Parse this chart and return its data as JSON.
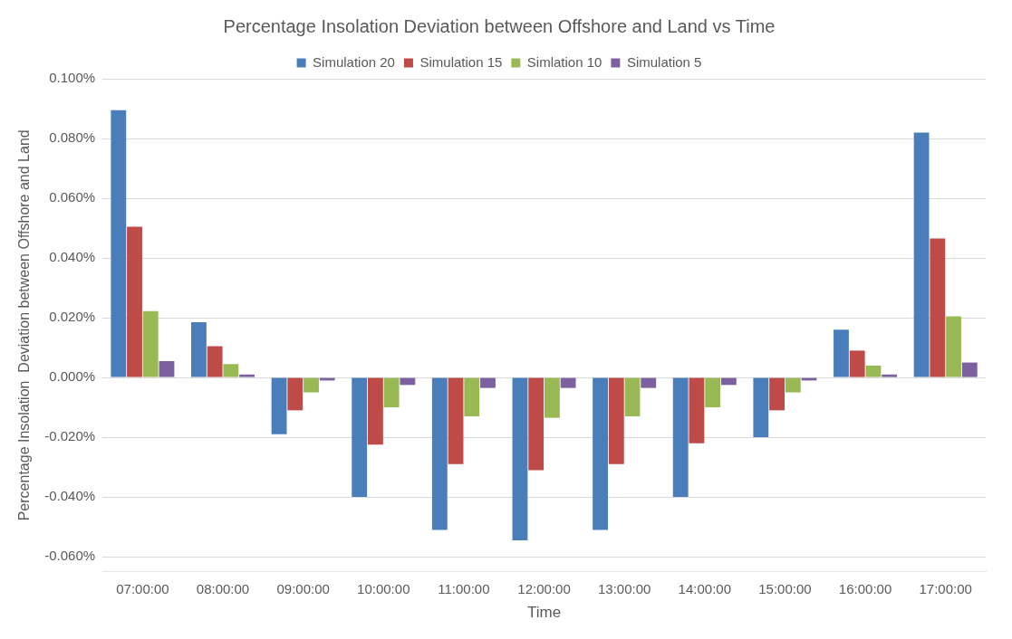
{
  "chart_data": {
    "type": "bar",
    "title": "Percentage Insolation Deviation between Offshore and Land vs Time",
    "xlabel": "Time",
    "ylabel": "Percentage Insolation  Deviation between Offshore and Land",
    "categories": [
      "07:00:00",
      "08:00:00",
      "09:00:00",
      "10:00:00",
      "11:00:00",
      "12:00:00",
      "13:00:00",
      "14:00:00",
      "15:00:00",
      "16:00:00",
      "17:00:00"
    ],
    "series": [
      {
        "name": "Simulation 20",
        "color": "#4a7ebb",
        "values": [
          0.0895,
          0.0185,
          -0.019,
          -0.04,
          -0.051,
          -0.0545,
          -0.051,
          -0.04,
          -0.02,
          0.016,
          0.082
        ]
      },
      {
        "name": "Simulation 15",
        "color": "#be4b48",
        "values": [
          0.0505,
          0.0105,
          -0.011,
          -0.0225,
          -0.029,
          -0.031,
          -0.029,
          -0.022,
          -0.011,
          0.009,
          0.0465
        ]
      },
      {
        "name": "Simlation 10",
        "color": "#98b954",
        "values": [
          0.0222,
          0.0045,
          -0.005,
          -0.01,
          -0.013,
          -0.0135,
          -0.013,
          -0.01,
          -0.005,
          0.004,
          0.0205
        ]
      },
      {
        "name": "Simulation 5",
        "color": "#7d60a0",
        "values": [
          0.0055,
          0.001,
          -0.001,
          -0.0025,
          -0.0035,
          -0.0035,
          -0.0035,
          -0.0025,
          -0.001,
          0.001,
          0.005
        ]
      }
    ],
    "ylim": [
      -0.065,
      0.1
    ],
    "yticks": [
      {
        "value": -0.06,
        "label": "-0.060%"
      },
      {
        "value": -0.04,
        "label": "-0.040%"
      },
      {
        "value": -0.02,
        "label": "-0.020%"
      },
      {
        "value": 0,
        "label": "0.000%"
      },
      {
        "value": 0.02,
        "label": "0.020%"
      },
      {
        "value": 0.04,
        "label": "0.040%"
      },
      {
        "value": 0.06,
        "label": "0.060%"
      },
      {
        "value": 0.08,
        "label": "0.080%"
      },
      {
        "value": 0.1,
        "label": "0.100%"
      }
    ],
    "grid": "y",
    "legend": "top"
  }
}
